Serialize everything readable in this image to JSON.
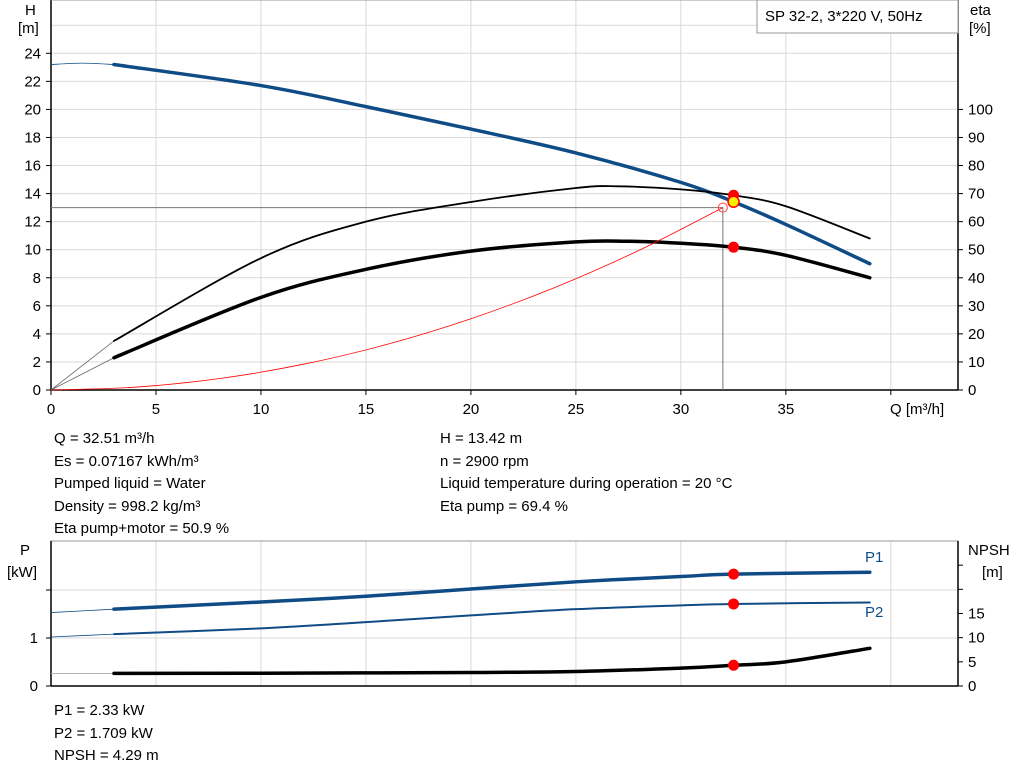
{
  "chart_data": [
    {
      "type": "line",
      "title": "SP 32-2, 3*220 V, 50Hz",
      "xlabel": "Q [m³/h]",
      "ylabel_left": [
        "H",
        "[m]"
      ],
      "ylabel_right": [
        "eta",
        "[%]"
      ],
      "xlim": [
        0,
        43.2
      ],
      "ylim_left": [
        0,
        27.8
      ],
      "ylim_right": [
        0,
        139
      ],
      "xticks": [
        0,
        5,
        10,
        15,
        20,
        25,
        30,
        35
      ],
      "yticks_left": [
        0,
        2,
        4,
        6,
        8,
        10,
        12,
        14,
        16,
        18,
        20,
        22,
        24
      ],
      "yticks_right": [
        0,
        10,
        20,
        30,
        40,
        50,
        60,
        70,
        80,
        90,
        100
      ],
      "grid": true,
      "series": [
        {
          "id": "H",
          "axis": "left",
          "color": "#0f4c86",
          "x": [
            0,
            1.5,
            3,
            10,
            15,
            20,
            25,
            30,
            32.5,
            35,
            39
          ],
          "y": [
            23.2,
            23.3,
            23.2,
            21.7,
            20.2,
            18.6,
            16.9,
            14.8,
            13.42,
            11.8,
            9.0
          ]
        },
        {
          "id": "eta_pump",
          "axis": "right",
          "color": "#000000",
          "x": [
            0,
            3,
            10,
            15,
            20,
            25,
            27,
            30,
            32.5,
            35,
            39
          ],
          "y": [
            0,
            17.5,
            47,
            60,
            67,
            72,
            72.6,
            71.5,
            69.4,
            65.5,
            54
          ]
        },
        {
          "id": "eta_total",
          "axis": "right",
          "color": "#000000",
          "x": [
            0,
            3,
            10,
            15,
            20,
            25,
            27.5,
            30,
            32.5,
            35,
            39
          ],
          "y": [
            0,
            11.5,
            33,
            43,
            49.5,
            52.8,
            53,
            52.3,
            50.9,
            48,
            40
          ]
        },
        {
          "id": "system_curve",
          "axis": "left",
          "color": "#ff0000",
          "x": [
            0,
            4,
            8,
            12,
            16,
            20,
            24,
            28,
            32
          ],
          "y": [
            0,
            0.2,
            0.81,
            1.83,
            3.25,
            5.08,
            7.31,
            9.95,
            13
          ]
        }
      ],
      "duty_point": {
        "Q": 32,
        "H": 13
      },
      "operating_point": {
        "Q": 32.51,
        "H": 13.42,
        "eta_pump": 69.4,
        "eta_total": 50.9
      }
    },
    {
      "type": "line",
      "ylabel_left": [
        "P",
        "[kW]"
      ],
      "ylabel_right": [
        "NPSH",
        "[m]"
      ],
      "xlim": [
        0,
        43.2
      ],
      "ylim_left": [
        0,
        3.02
      ],
      "ylim_right": [
        0,
        30
      ],
      "yticks_left": [
        0,
        1,
        2
      ],
      "yticks_left_labels": [
        "0",
        "1",
        ""
      ],
      "yticks_right": [
        0,
        5,
        10,
        15,
        20,
        25
      ],
      "yticks_right_labels": [
        "0",
        "5",
        "10",
        "15",
        "",
        ""
      ],
      "grid": true,
      "series": [
        {
          "id": "P1",
          "name": "P1",
          "axis": "left",
          "color": "#0f4c86",
          "x": [
            0,
            3,
            10,
            15,
            20,
            25,
            30,
            32.51,
            39
          ],
          "y": [
            1.53,
            1.6,
            1.75,
            1.87,
            2.02,
            2.17,
            2.28,
            2.33,
            2.37
          ]
        },
        {
          "id": "P2",
          "name": "P2",
          "axis": "left",
          "color": "#0f4c86",
          "x": [
            0,
            3,
            10,
            15,
            20,
            25,
            30,
            32.51,
            39
          ],
          "y": [
            1.02,
            1.08,
            1.2,
            1.33,
            1.47,
            1.6,
            1.68,
            1.709,
            1.74
          ]
        },
        {
          "id": "NPSH",
          "axis": "right",
          "color": "#000000",
          "x": [
            0,
            3,
            10,
            20,
            25,
            30,
            32.51,
            35,
            39
          ],
          "y": [
            2.6,
            2.6,
            2.65,
            2.8,
            3.0,
            3.7,
            4.29,
            5.0,
            7.8
          ]
        }
      ],
      "operating_point": {
        "Q": 32.51,
        "P1": 2.33,
        "P2": 1.709,
        "NPSH": 4.29
      }
    }
  ],
  "results_top": {
    "left": [
      "Q = 32.51 m³/h",
      "Es = 0.07167 kWh/m³",
      "Pumped liquid = Water",
      "Density = 998.2 kg/m³",
      "Eta pump+motor = 50.9 %"
    ],
    "right": [
      "H = 13.42 m",
      "n = 2900 rpm",
      "Liquid temperature during operation = 20 °C",
      "Eta pump = 69.4 %"
    ]
  },
  "results_bottom": [
    "P1 = 2.33 kW",
    "P2 = 1.709 kW",
    "NPSH = 4.29 m"
  ]
}
